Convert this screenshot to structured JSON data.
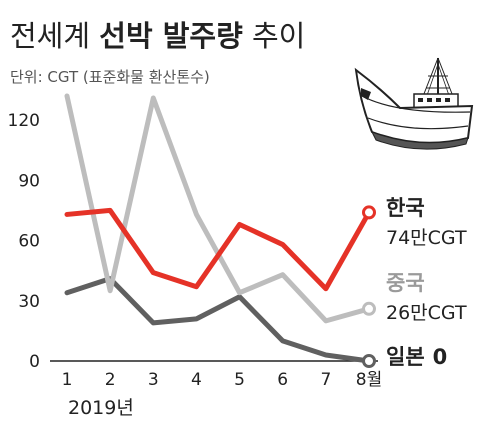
{
  "chart_data": {
    "type": "line",
    "title_prefix": "전세계",
    "title_bold": "선박 발주량",
    "title_suffix": "추이",
    "unit_label": "단위: CGT (표준화물 환산톤수)",
    "x_tick_labels": [
      "1",
      "2",
      "3",
      "4",
      "5",
      "6",
      "7",
      "8월"
    ],
    "x_year_label": "2019년",
    "y_ticks": [
      0,
      30,
      60,
      90,
      120
    ],
    "ylim": [
      0,
      130
    ],
    "series": [
      {
        "name": "한국",
        "value_label": "74만CGT",
        "color": "#e53227",
        "values": [
          73,
          75,
          44,
          37,
          68,
          58,
          36,
          74
        ],
        "end_marker": true
      },
      {
        "name": "중국",
        "value_label": "26만CGT",
        "color": "#bdbdbd",
        "values": [
          132,
          35,
          131,
          73,
          34,
          43,
          20,
          26
        ],
        "end_marker": true
      },
      {
        "name": "일본",
        "value_label": "0",
        "color": "#606060",
        "values": [
          34,
          41,
          19,
          21,
          32,
          10,
          3,
          0
        ],
        "end_marker": true
      }
    ]
  },
  "colors": {
    "axis": "#222222",
    "text": "#222222",
    "unit_text": "#555555",
    "china_label": "#9a9a9a"
  },
  "illustration": {
    "icon": "ship-icon"
  }
}
